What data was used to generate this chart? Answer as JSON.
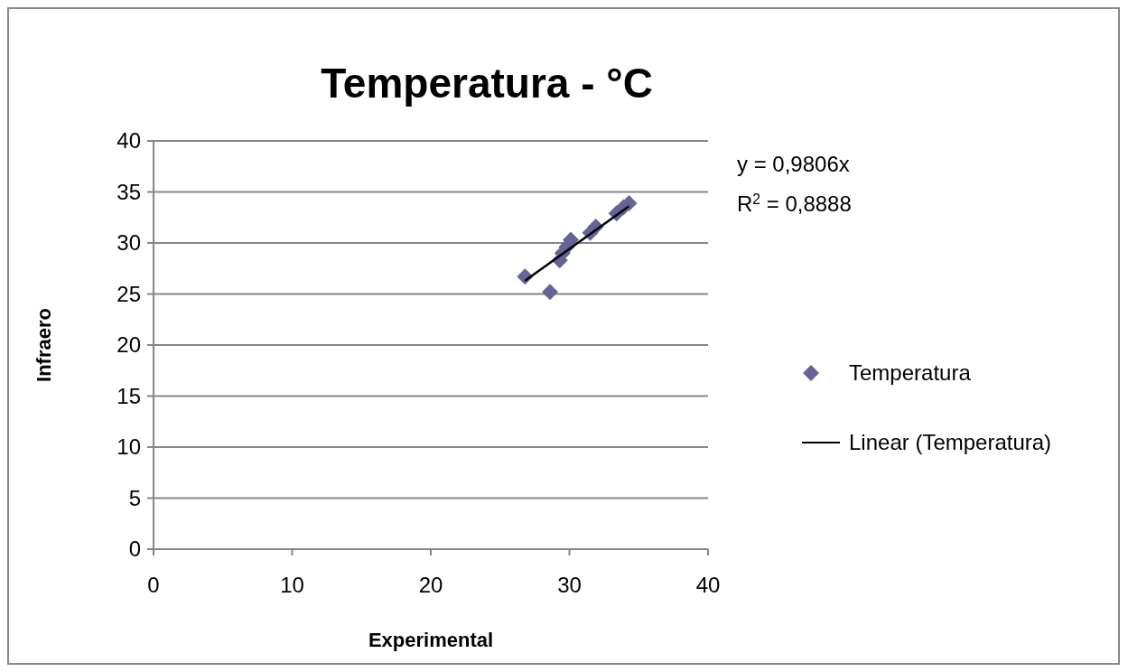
{
  "chart_data": {
    "type": "scatter",
    "title": "Temperatura - °C",
    "xlabel": "Experimental",
    "ylabel": "Infraero",
    "x": [
      26.8,
      28.6,
      29.3,
      29.5,
      29.8,
      30.1,
      31.5,
      31.9,
      33.4,
      33.9,
      34.3
    ],
    "series": [
      {
        "name": "Temperatura",
        "color": "#646496",
        "marker": "diamond",
        "values": [
          26.7,
          25.2,
          28.3,
          29.0,
          29.6,
          30.3,
          31.0,
          31.6,
          32.9,
          33.5,
          33.9
        ]
      },
      {
        "name": "Linear (Temperatura)",
        "type": "line",
        "color": "#000000",
        "marker": "none",
        "x": [
          26.8,
          34.3
        ],
        "values": [
          26.3,
          33.6
        ]
      }
    ],
    "xlim": [
      0,
      40
    ],
    "xticks": [
      0,
      10,
      20,
      30,
      40
    ],
    "ylim": [
      0,
      40
    ],
    "yticks": [
      0,
      5,
      10,
      15,
      20,
      25,
      30,
      35,
      40
    ],
    "grid": "y",
    "legend": "right",
    "annotations": [
      "y = 0,9806x",
      "R$^{2}$ = 0,8888"
    ]
  }
}
